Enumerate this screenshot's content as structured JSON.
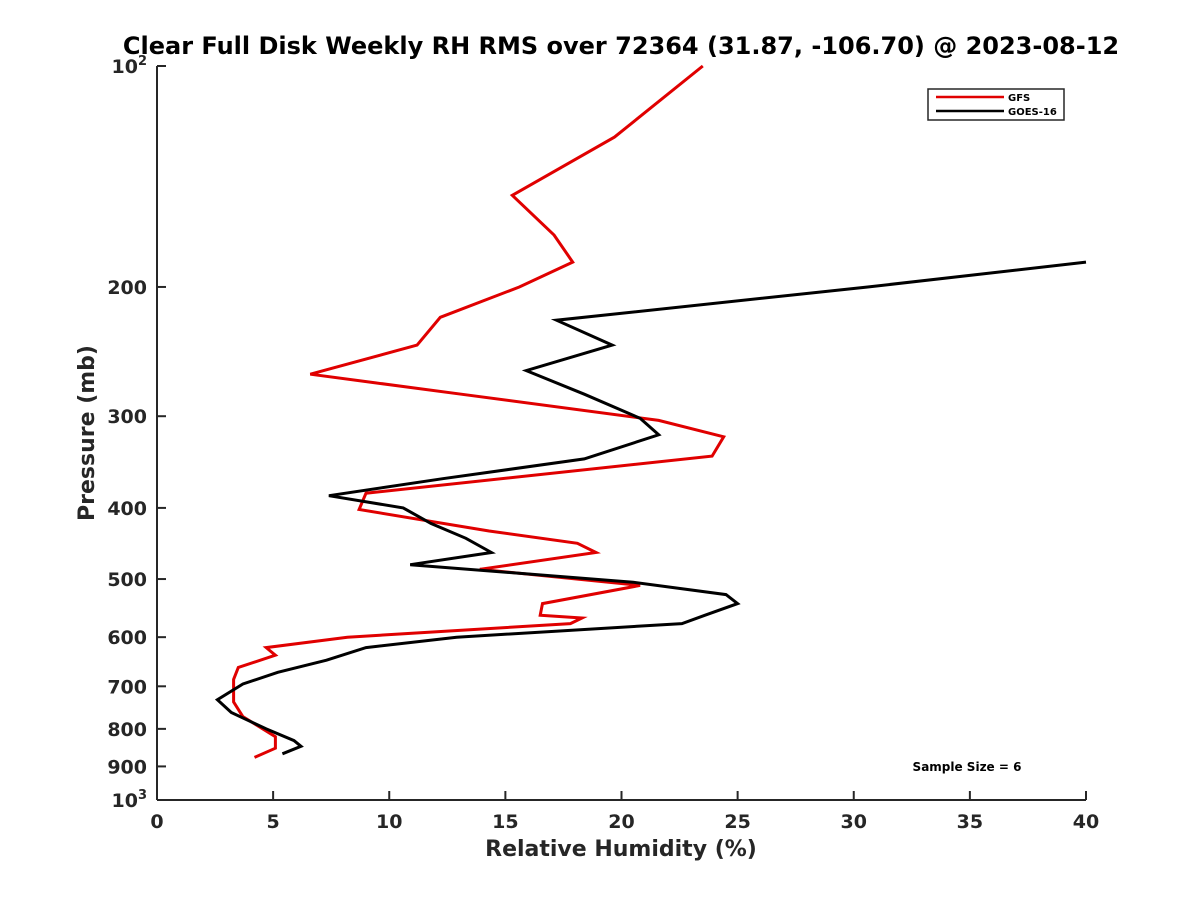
{
  "chart_data": {
    "type": "line",
    "title": "Clear Full Disk Weekly RH RMS over 72364 (31.87, -106.70) @ 2023-08-12",
    "xlabel": "Relative Humidity (%)",
    "ylabel": "Pressure (mb)",
    "xlim": [
      0,
      40
    ],
    "ylim": [
      1000,
      100
    ],
    "y_scale": "log",
    "y_reversed": true,
    "x_ticks": [
      0,
      5,
      10,
      15,
      20,
      25,
      30,
      35,
      40
    ],
    "y_ticks": [
      {
        "value": 100,
        "base": "10",
        "exp": "2"
      },
      {
        "value": 200,
        "label": "200"
      },
      {
        "value": 300,
        "label": "300"
      },
      {
        "value": 400,
        "label": "400"
      },
      {
        "value": 500,
        "label": "500"
      },
      {
        "value": 600,
        "label": "600"
      },
      {
        "value": 700,
        "label": "700"
      },
      {
        "value": 800,
        "label": "800"
      },
      {
        "value": 900,
        "label": "900"
      },
      {
        "value": 1000,
        "base": "10",
        "exp": "3"
      }
    ],
    "grid": false,
    "legend_position": "top-right",
    "series": [
      {
        "name": "GFS",
        "color": "#e00000",
        "points": [
          [
            23.5,
            100
          ],
          [
            19.7,
            125
          ],
          [
            15.3,
            150
          ],
          [
            17.1,
            170
          ],
          [
            17.9,
            185
          ],
          [
            15.6,
            200
          ],
          [
            12.2,
            220
          ],
          [
            11.2,
            240
          ],
          [
            6.6,
            263
          ],
          [
            13.1,
            280
          ],
          [
            21.6,
            304
          ],
          [
            24.4,
            320
          ],
          [
            23.9,
            340
          ],
          [
            9.0,
            382
          ],
          [
            8.7,
            402
          ],
          [
            14.3,
            430
          ],
          [
            18.1,
            447
          ],
          [
            18.9,
            460
          ],
          [
            13.9,
            485
          ],
          [
            20.8,
            510
          ],
          [
            16.6,
            540
          ],
          [
            16.5,
            560
          ],
          [
            18.3,
            565
          ],
          [
            17.8,
            575
          ],
          [
            8.2,
            600
          ],
          [
            4.7,
            620
          ],
          [
            5.1,
            635
          ],
          [
            3.5,
            660
          ],
          [
            3.3,
            685
          ],
          [
            3.3,
            735
          ],
          [
            3.7,
            770
          ],
          [
            5.1,
            820
          ],
          [
            5.1,
            850
          ],
          [
            4.2,
            875
          ]
        ]
      },
      {
        "name": "GOES-16",
        "color": "#000000",
        "points": [
          [
            40.0,
            185
          ],
          [
            30.6,
            200
          ],
          [
            17.2,
            222
          ],
          [
            19.6,
            240
          ],
          [
            15.9,
            260
          ],
          [
            18.4,
            280
          ],
          [
            20.8,
            302
          ],
          [
            21.6,
            318
          ],
          [
            18.4,
            343
          ],
          [
            12.3,
            365
          ],
          [
            7.4,
            385
          ],
          [
            10.6,
            400
          ],
          [
            11.8,
            420
          ],
          [
            13.3,
            440
          ],
          [
            14.4,
            460
          ],
          [
            10.9,
            478
          ],
          [
            20.5,
            505
          ],
          [
            24.5,
            525
          ],
          [
            25.0,
            540
          ],
          [
            23.6,
            560
          ],
          [
            22.6,
            575
          ],
          [
            12.9,
            600
          ],
          [
            9.0,
            620
          ],
          [
            7.3,
            645
          ],
          [
            5.2,
            670
          ],
          [
            3.7,
            695
          ],
          [
            2.6,
            730
          ],
          [
            3.2,
            760
          ],
          [
            4.7,
            800
          ],
          [
            5.9,
            830
          ],
          [
            6.2,
            845
          ],
          [
            5.4,
            865
          ]
        ]
      }
    ],
    "annotation": "Sample Size = 6"
  }
}
